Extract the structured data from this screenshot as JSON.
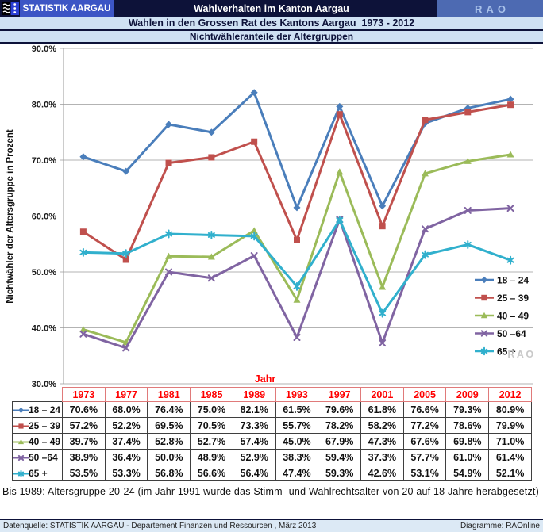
{
  "header": {
    "brand": "STATISTIK AARGAU",
    "title": "Wahlverhalten im Kanton Aargau",
    "logo": "RAO",
    "subtitle1": "Wahlen in den Grossen Rat des Kantons Aargau  1973 - 2012",
    "subtitle2": "Nichtwähleranteile der Altergruppen"
  },
  "colors": {
    "navy": "#0d1239",
    "brand_blue": "#3c55c5",
    "rao_box": "#4d6ab2",
    "rao_text": "#a9c2ea",
    "light_blue": "#cfe1f3",
    "footer_bar": "#dce9f5",
    "grid": "#b3b3b3",
    "axis": "#9a9a9a",
    "tick_red": "#ff0000",
    "header_border": "#e07a7a",
    "table_border": "#3f3f3f",
    "watermark_gray": "#c9c9c9"
  },
  "chart_data": {
    "type": "line",
    "title": "Nichtwähleranteile der Altergruppen",
    "x": [
      "1973",
      "1977",
      "1981",
      "1985",
      "1989",
      "1993",
      "1997",
      "2001",
      "2005",
      "2009",
      "2012"
    ],
    "xlabel": "Jahr",
    "ylabel": "Nichtwähler der Altersgruppe in Prozent",
    "ylim": [
      30,
      90
    ],
    "ytick_step": 10,
    "yticks": [
      "30.0%",
      "40.0%",
      "50.0%",
      "60.0%",
      "70.0%",
      "80.0%",
      "90.0%"
    ],
    "grid": "horizontal",
    "legend_position": "right",
    "series": [
      {
        "name": "18 – 24",
        "marker": "diamond",
        "color": "#4a7ebb",
        "values": [
          70.6,
          68.0,
          76.4,
          75.0,
          82.1,
          61.5,
          79.6,
          61.8,
          76.6,
          79.3,
          80.9
        ]
      },
      {
        "name": "25 – 39",
        "marker": "square",
        "color": "#c0504d",
        "values": [
          57.2,
          52.2,
          69.5,
          70.5,
          73.3,
          55.7,
          78.2,
          58.2,
          77.2,
          78.6,
          79.9
        ]
      },
      {
        "name": "40 – 49",
        "marker": "triangle",
        "color": "#9bbb59",
        "values": [
          39.7,
          37.4,
          52.8,
          52.7,
          57.4,
          45.0,
          67.9,
          47.3,
          67.6,
          69.8,
          71.0
        ]
      },
      {
        "name": "50 –64",
        "marker": "x",
        "color": "#8064a2",
        "values": [
          38.9,
          36.4,
          50.0,
          48.9,
          52.9,
          38.3,
          59.4,
          37.3,
          57.7,
          61.0,
          61.4
        ]
      },
      {
        "name": "65 +",
        "marker": "asterisk",
        "color": "#31b0cd",
        "values": [
          53.5,
          53.3,
          56.8,
          56.6,
          56.4,
          47.4,
          59.3,
          42.6,
          53.1,
          54.9,
          52.1
        ]
      }
    ]
  },
  "watermark": "RAO",
  "footnote": "Bis 1989: Altersgruppe 20-24 (im Jahr 1991 wurde das Stimm- und Wahlrechtsalter von 20 auf 18 Jahre herabgesetzt)",
  "footer": {
    "left": "Datenquelle: STATISTIK AARGAU - Departement Finanzen und Ressourcen , März 2013",
    "right": "Diagramme: RAOnline"
  }
}
